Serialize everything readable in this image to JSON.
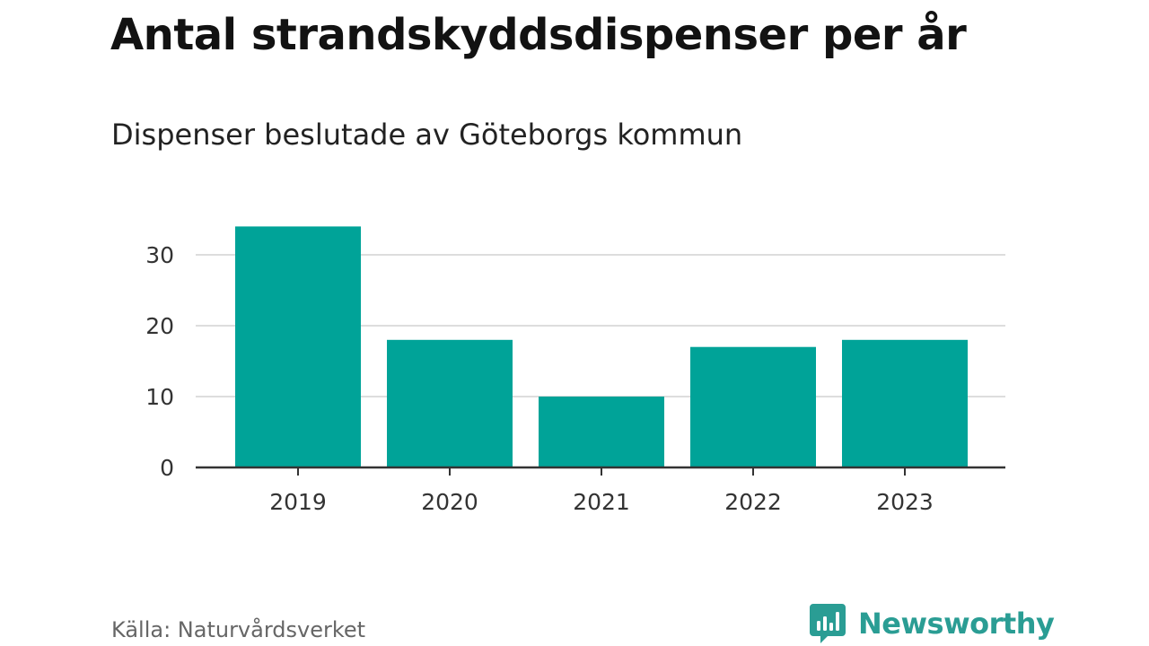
{
  "title": "Antal strandskyddsdispenser per år",
  "subtitle": "Dispenser beslutade av Göteborgs kommun",
  "footer": {
    "source": "Källa: Naturvårdsverket",
    "brand": "Newsworthy"
  },
  "colors": {
    "bar": "#00a398",
    "grid": "#dddddd",
    "axis": "#333333",
    "tick_text": "#333333",
    "brand": "#2a9d94"
  },
  "chart_data": {
    "type": "bar",
    "title": "Antal strandskyddsdispenser per år",
    "subtitle": "Dispenser beslutade av Göteborgs kommun",
    "categories": [
      "2019",
      "2020",
      "2021",
      "2022",
      "2023"
    ],
    "values": [
      34,
      18,
      10,
      17,
      18
    ],
    "xlabel": "",
    "ylabel": "",
    "ylim": [
      0,
      34
    ],
    "yticks": [
      0,
      10,
      20,
      30
    ],
    "grid": true
  }
}
